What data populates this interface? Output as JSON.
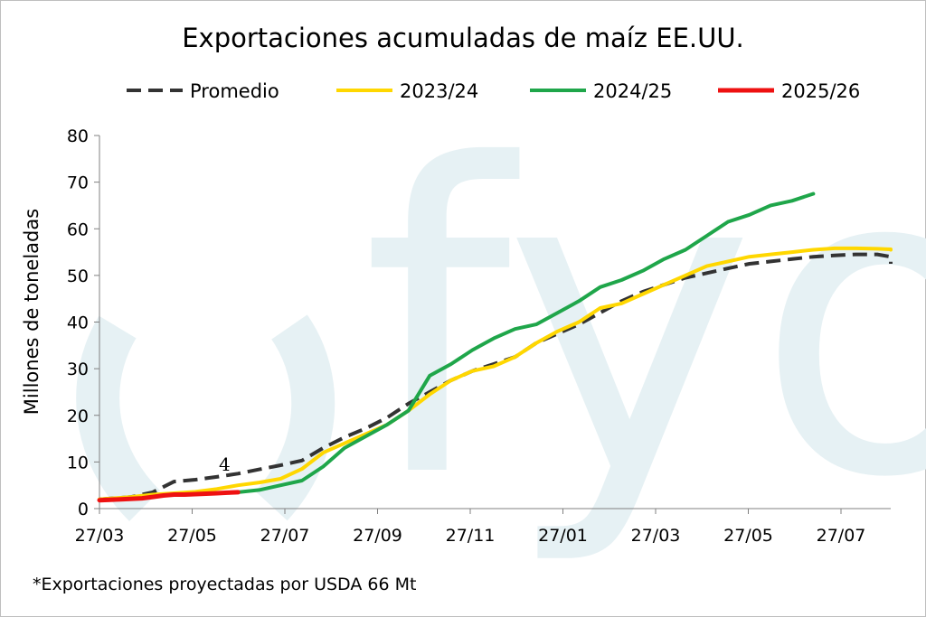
{
  "chart_data": {
    "type": "line",
    "title": "Exportaciones acumuladas de maíz EE.UU.",
    "ylabel": "Millones de toneladas",
    "xlabel": "",
    "ylim": [
      0,
      80
    ],
    "yticks": [
      "0",
      "10",
      "20",
      "30",
      "40",
      "50",
      "60",
      "70",
      "80"
    ],
    "xticks": [
      "27/03",
      "27/05",
      "27/07",
      "27/09",
      "27/11",
      "27/01",
      "27/03",
      "27/05",
      "27/07"
    ],
    "grid": false,
    "legend_position": "top",
    "watermark": "fyo",
    "annotation": "4",
    "footnote": "*Exportaciones proyectadas por USDA 66 Mt",
    "x_note": "x values are weeks counted from the first 27/03 tick; each tick step spans ~8.7 weeks",
    "series": [
      {
        "name": "Promedio",
        "color": "#333333",
        "dash": true,
        "x": [
          0,
          3,
          5,
          7,
          9,
          11,
          13,
          15,
          17,
          19,
          21,
          23,
          25,
          27,
          29,
          31,
          33,
          35,
          37,
          39,
          41,
          43,
          45,
          47,
          49,
          51,
          53,
          55,
          57,
          59,
          61,
          63,
          65,
          67,
          69,
          71,
          73,
          75,
          77,
          79,
          80
        ],
        "y": [
          2,
          2.5,
          3.5,
          5.8,
          6.2,
          6.8,
          7.5,
          8.4,
          9.3,
          10.3,
          13,
          15.3,
          17.2,
          19.5,
          22.5,
          25,
          27.5,
          29.5,
          31,
          32.5,
          35.5,
          37.5,
          39.5,
          42,
          44.5,
          46.5,
          48,
          49.5,
          50.5,
          51.5,
          52.5,
          53,
          53.5,
          54,
          54.3,
          54.5,
          54.5,
          54,
          53.5,
          53,
          52.5
        ]
      },
      {
        "name": "2023/24",
        "color": "#ffd700",
        "dash": false,
        "x": [
          0,
          3,
          5,
          7,
          9,
          11,
          13,
          15,
          17,
          19,
          21,
          23,
          25,
          27,
          29,
          31,
          33,
          35,
          37,
          39,
          41,
          43,
          45,
          47,
          49,
          51,
          53,
          55,
          57,
          59,
          61,
          63,
          65,
          67,
          69,
          71,
          73,
          75,
          77,
          79
        ],
        "y": [
          2,
          2.5,
          3,
          3.3,
          3.6,
          4.2,
          5,
          5.6,
          6.4,
          8.5,
          12,
          14,
          16,
          18,
          21,
          24.5,
          27.5,
          29.5,
          30.5,
          32.5,
          35.5,
          38,
          40,
          43,
          44,
          46,
          48,
          50,
          52,
          53,
          54,
          54.5,
          55,
          55.5,
          55.8,
          55.8,
          55.7,
          55.6,
          55.5,
          55.5
        ]
      },
      {
        "name": "2024/25",
        "color": "#1fa64a",
        "dash": false,
        "x": [
          13,
          15,
          17,
          19,
          21,
          23,
          25,
          27,
          29,
          31,
          33,
          35,
          37,
          39,
          41,
          43,
          45,
          47,
          49,
          51,
          53,
          55,
          57,
          59,
          61,
          63,
          65,
          67
        ],
        "y": [
          3.5,
          4,
          5,
          6,
          9,
          13,
          15.5,
          18,
          21,
          28.5,
          31,
          34,
          36.5,
          38.5,
          39.5,
          42,
          44.5,
          47.5,
          49,
          51,
          53.5,
          55.5,
          58.5,
          61.5,
          63,
          65,
          66,
          67.5
        ]
      },
      {
        "name": "2025/26",
        "color": "#ee1111",
        "dash": false,
        "x": [
          0,
          2,
          4,
          5,
          6,
          7,
          8,
          9,
          10,
          11,
          12,
          13
        ],
        "y": [
          1.8,
          2,
          2.2,
          2.5,
          2.8,
          3,
          3,
          3.1,
          3.2,
          3.3,
          3.4,
          3.5
        ]
      }
    ]
  }
}
